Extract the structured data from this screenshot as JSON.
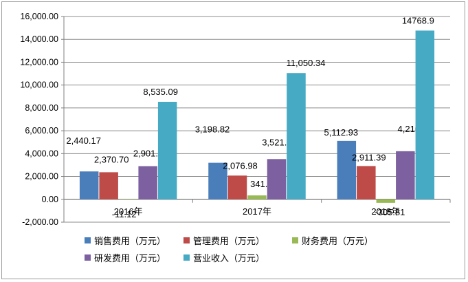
{
  "chart_data": {
    "type": "bar",
    "categories": [
      "2016年",
      "2017年",
      "2018年"
    ],
    "series": [
      {
        "name": "销售费用（万元）",
        "color": "#4a7ebb",
        "values": [
          2440.17,
          3198.82,
          5112.93
        ],
        "labels": [
          "2,440.17",
          "3,198.82",
          "5,112.93"
        ]
      },
      {
        "name": "管理费用（万元）",
        "color": "#be4b48",
        "values": [
          2370.7,
          2076.98,
          2911.39
        ],
        "labels": [
          "2,370.70",
          "2,076.98",
          "2,911.39"
        ]
      },
      {
        "name": "财务费用（万元）",
        "color": "#98b954",
        "values": [
          -11.12,
          341.01,
          -305.81
        ],
        "labels": [
          "-11.12",
          "341.01",
          "-305.81"
        ]
      },
      {
        "name": "研发费用（万元）",
        "color": "#7d60a0",
        "values": [
          2901.7,
          3521.58,
          4210.12
        ],
        "labels": [
          "2,901.70",
          "3,521.58",
          "4,210.12"
        ]
      },
      {
        "name": "营业收入（万元）",
        "color": "#46aac5",
        "values": [
          8535.09,
          11050.34,
          14768.9
        ],
        "labels": [
          "8,535.09",
          "11,050.34",
          "14768.9"
        ]
      }
    ],
    "ylim": [
      -2000,
      16000
    ],
    "yticks": [
      -2000,
      0,
      2000,
      4000,
      6000,
      8000,
      10000,
      12000,
      14000,
      16000
    ],
    "ytick_labels": [
      "-2,000.00",
      "0.00",
      "2,000.00",
      "4,000.00",
      "6,000.00",
      "8,000.00",
      "10,000.00",
      "12,000.00",
      "14,000.00",
      "16,000.00"
    ],
    "grid": true,
    "legend_position": "bottom",
    "title": "",
    "xlabel": "",
    "ylabel": ""
  }
}
